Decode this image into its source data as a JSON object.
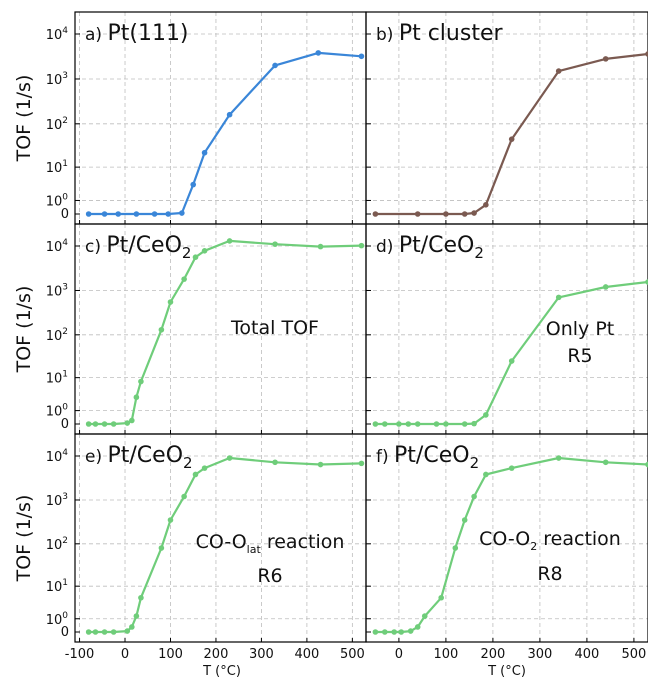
{
  "figure": {
    "y_axis_label": "TOF (1/s)",
    "x_axis_label": "T (°C)"
  },
  "chart_data": [
    {
      "type": "line",
      "panel": "a",
      "title": "a) Pt(111)",
      "title_prefix": "a)",
      "title_main": "Pt(111)",
      "title_sub": "",
      "annotation_lines": [],
      "color": "#3a86d8",
      "xlim": [
        -110,
        530
      ],
      "y_scale": "symlog",
      "ylim": [
        0,
        20000
      ],
      "x_ticks": [
        -100,
        0,
        100,
        200,
        300,
        400,
        500
      ],
      "y_ticks": [
        {
          "value": 0,
          "label": "0"
        },
        {
          "value": 1,
          "label": "10^0"
        },
        {
          "value": 10,
          "label": "10^1"
        },
        {
          "value": 100,
          "label": "10^2"
        },
        {
          "value": 1000,
          "label": "10^3"
        },
        {
          "value": 10000,
          "label": "10^4"
        }
      ],
      "x_tick_labels_visible": false,
      "y_tick_labels_visible": true,
      "grid": true,
      "series": [
        {
          "x": [
            -80,
            -45,
            -15,
            25,
            65,
            95,
            125,
            150,
            175,
            230,
            330,
            425,
            520
          ],
          "y": [
            0,
            0,
            0,
            0,
            0,
            0,
            0.05,
            3.5,
            22,
            160,
            2000,
            3800,
            3200
          ]
        }
      ]
    },
    {
      "type": "line",
      "panel": "b",
      "title": "b) Pt cluster",
      "title_prefix": "b)",
      "title_main": "Pt cluster",
      "title_sub": "",
      "annotation_lines": [],
      "color": "#7b5a51",
      "xlim": [
        -70,
        530
      ],
      "y_scale": "symlog",
      "ylim": [
        0,
        20000
      ],
      "x_ticks": [
        0,
        100,
        200,
        300,
        400,
        500
      ],
      "y_ticks": [
        {
          "value": 0,
          "label": "0"
        },
        {
          "value": 1,
          "label": "10^0"
        },
        {
          "value": 10,
          "label": "10^1"
        },
        {
          "value": 100,
          "label": "10^2"
        },
        {
          "value": 1000,
          "label": "10^3"
        },
        {
          "value": 10000,
          "label": "10^4"
        }
      ],
      "x_tick_labels_visible": false,
      "y_tick_labels_visible": false,
      "grid": true,
      "series": [
        {
          "x": [
            -50,
            40,
            100,
            140,
            160,
            185,
            240,
            340,
            440,
            530
          ],
          "y": [
            0,
            0,
            0,
            0,
            0.05,
            0.6,
            45,
            1500,
            2800,
            3600
          ]
        }
      ]
    },
    {
      "type": "line",
      "panel": "c",
      "title": "c) Pt/CeO2",
      "title_prefix": "c)",
      "title_main": "Pt/CeO",
      "title_sub": "2",
      "annotation_lines": [
        "Total TOF"
      ],
      "color": "#6fcd7a",
      "xlim": [
        -110,
        530
      ],
      "y_scale": "symlog",
      "ylim": [
        0,
        30000
      ],
      "x_ticks": [
        -100,
        0,
        100,
        200,
        300,
        400,
        500
      ],
      "y_ticks": [
        {
          "value": 0,
          "label": "0"
        },
        {
          "value": 1,
          "label": "10^0"
        },
        {
          "value": 10,
          "label": "10^1"
        },
        {
          "value": 100,
          "label": "10^2"
        },
        {
          "value": 1000,
          "label": "10^3"
        },
        {
          "value": 10000,
          "label": "10^4"
        }
      ],
      "x_tick_labels_visible": false,
      "y_tick_labels_visible": true,
      "grid": true,
      "series": [
        {
          "x": [
            -80,
            -65,
            -45,
            -25,
            5,
            15,
            25,
            35,
            80,
            100,
            130,
            155,
            175,
            230,
            330,
            430,
            520
          ],
          "y": [
            0,
            0,
            0,
            0,
            0.05,
            0.2,
            3,
            8,
            130,
            550,
            1800,
            5600,
            7800,
            13000,
            11000,
            9700,
            10200
          ]
        }
      ]
    },
    {
      "type": "line",
      "panel": "d",
      "title": "d) Pt/CeO2",
      "title_prefix": "d)",
      "title_main": "Pt/CeO",
      "title_sub": "2",
      "annotation_lines": [
        "Only Pt",
        "R5"
      ],
      "color": "#6fcd7a",
      "xlim": [
        -70,
        530
      ],
      "y_scale": "symlog",
      "ylim": [
        0,
        30000
      ],
      "x_ticks": [
        0,
        100,
        200,
        300,
        400,
        500
      ],
      "y_ticks": [
        {
          "value": 0,
          "label": "0"
        },
        {
          "value": 1,
          "label": "10^0"
        },
        {
          "value": 10,
          "label": "10^1"
        },
        {
          "value": 100,
          "label": "10^2"
        },
        {
          "value": 1000,
          "label": "10^3"
        },
        {
          "value": 10000,
          "label": "10^4"
        }
      ],
      "x_tick_labels_visible": false,
      "y_tick_labels_visible": false,
      "grid": true,
      "series": [
        {
          "x": [
            -50,
            -30,
            0,
            20,
            40,
            80,
            100,
            140,
            160,
            185,
            240,
            340,
            440,
            530
          ],
          "y": [
            0,
            0,
            0,
            0,
            0,
            0,
            0,
            0,
            0.02,
            0.6,
            25,
            700,
            1200,
            1550
          ]
        }
      ]
    },
    {
      "type": "line",
      "panel": "e",
      "title": "e) Pt/CeO2",
      "title_prefix": "e)",
      "title_main": "Pt/CeO",
      "title_sub": "2",
      "annotation_lines": [
        "CO-Olat reaction",
        "R6"
      ],
      "color": "#6fcd7a",
      "xlim": [
        -110,
        530
      ],
      "y_scale": "symlog",
      "ylim": [
        0,
        30000
      ],
      "x_ticks": [
        -100,
        0,
        100,
        200,
        300,
        400,
        500
      ],
      "y_ticks": [
        {
          "value": 0,
          "label": "0"
        },
        {
          "value": 1,
          "label": "10^0"
        },
        {
          "value": 10,
          "label": "10^1"
        },
        {
          "value": 100,
          "label": "10^2"
        },
        {
          "value": 1000,
          "label": "10^3"
        },
        {
          "value": 10000,
          "label": "10^4"
        }
      ],
      "x_tick_labels_visible": true,
      "y_tick_labels_visible": true,
      "grid": true,
      "series": [
        {
          "x": [
            -80,
            -65,
            -45,
            -25,
            5,
            15,
            25,
            35,
            80,
            100,
            130,
            155,
            175,
            230,
            330,
            430,
            520
          ],
          "y": [
            0,
            0,
            0,
            0,
            0.05,
            0.3,
            1.3,
            5,
            80,
            350,
            1200,
            3800,
            5300,
            9000,
            7200,
            6400,
            6800
          ]
        }
      ]
    },
    {
      "type": "line",
      "panel": "f",
      "title": "f) Pt/CeO2",
      "title_prefix": "f)",
      "title_main": "Pt/CeO",
      "title_sub": "2",
      "annotation_lines": [
        "CO-O2 reaction",
        "R8"
      ],
      "color": "#6fcd7a",
      "xlim": [
        -70,
        530
      ],
      "y_scale": "symlog",
      "ylim": [
        0,
        30000
      ],
      "x_ticks": [
        0,
        100,
        200,
        300,
        400,
        500
      ],
      "y_ticks": [
        {
          "value": 0,
          "label": "0"
        },
        {
          "value": 1,
          "label": "10^0"
        },
        {
          "value": 10,
          "label": "10^1"
        },
        {
          "value": 100,
          "label": "10^2"
        },
        {
          "value": 1000,
          "label": "10^3"
        },
        {
          "value": 10000,
          "label": "10^4"
        }
      ],
      "x_tick_labels_visible": true,
      "y_tick_labels_visible": false,
      "grid": true,
      "series": [
        {
          "x": [
            -50,
            -30,
            -10,
            5,
            25,
            40,
            55,
            90,
            120,
            140,
            160,
            185,
            240,
            340,
            440,
            530
          ],
          "y": [
            0,
            0,
            0,
            0,
            0.05,
            0.3,
            1.3,
            5,
            80,
            350,
            1200,
            3800,
            5300,
            9000,
            7200,
            6400
          ]
        }
      ]
    }
  ]
}
